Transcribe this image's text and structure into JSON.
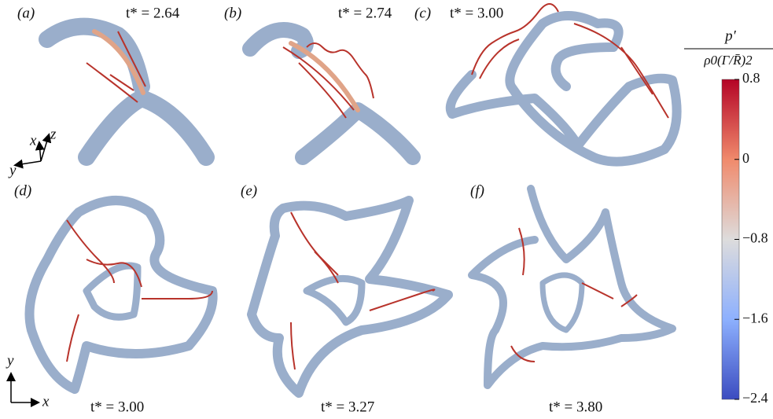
{
  "panels": [
    {
      "label": "(a)",
      "time": "t* = 2.64"
    },
    {
      "label": "(b)",
      "time": "t* = 2.74"
    },
    {
      "label": "(c)",
      "time": "t* = 3.00"
    },
    {
      "label": "(d)",
      "time": "t* = 3.00"
    },
    {
      "label": "(e)",
      "time": "t* = 3.27"
    },
    {
      "label": "(f)",
      "time": "t* = 3.80"
    }
  ],
  "axes_3d": {
    "x": "x",
    "y": "y",
    "z": "z"
  },
  "axes_2d": {
    "x": "x",
    "y": "y"
  },
  "colorbar": {
    "title": {
      "numerator": "p′",
      "denominator": "ρ0(Γ/R̄)2"
    },
    "lim": [
      -2.4,
      0.8
    ],
    "ticks": [
      0.8,
      0,
      {
        "value": -0.8,
        "label": "−0.8"
      },
      {
        "value": -1.6,
        "label": "−1.6"
      },
      {
        "value": -2.4,
        "label": "−2.4"
      }
    ]
  }
}
